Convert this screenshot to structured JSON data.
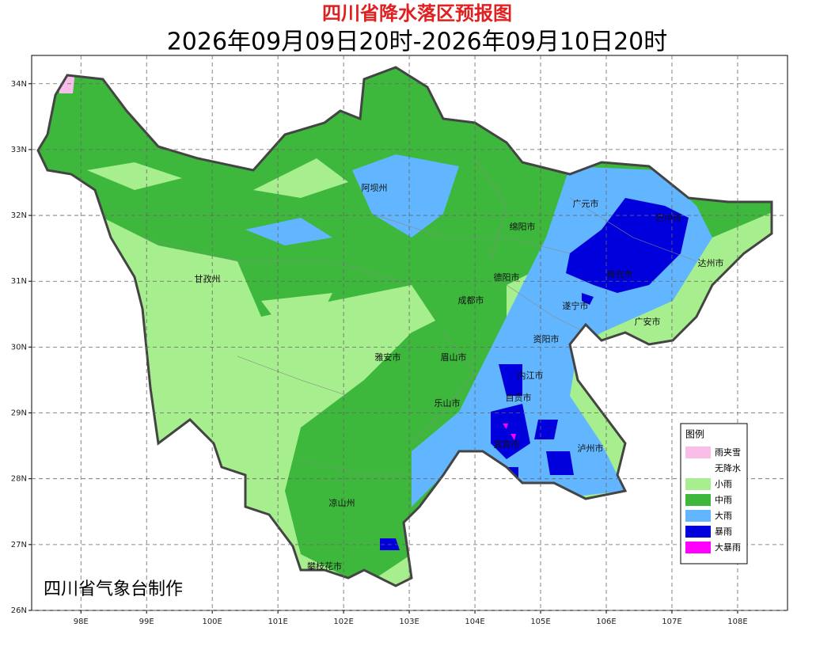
{
  "header": {
    "title": "四川省降水落区预报图",
    "subtitle": "2026年09月09日20时-2026年09月10日20时"
  },
  "map": {
    "xlim": [
      97.25,
      108.76
    ],
    "ylim": [
      26,
      34.43
    ],
    "xticks": [
      {
        "value": 98,
        "label": "98E"
      },
      {
        "value": 99,
        "label": "99E"
      },
      {
        "value": 100,
        "label": "100E"
      },
      {
        "value": 101,
        "label": "101E"
      },
      {
        "value": 102,
        "label": "102E"
      },
      {
        "value": 103,
        "label": "103E"
      },
      {
        "value": 104,
        "label": "104E"
      },
      {
        "value": 105,
        "label": "105E"
      },
      {
        "value": 106,
        "label": "106E"
      },
      {
        "value": 107,
        "label": "107E"
      },
      {
        "value": 108,
        "label": "108E"
      }
    ],
    "yticks": [
      {
        "value": 26,
        "label": "26N"
      },
      {
        "value": 27,
        "label": "27N"
      },
      {
        "value": 28,
        "label": "28N"
      },
      {
        "value": 29,
        "label": "29N"
      },
      {
        "value": 30,
        "label": "30N"
      },
      {
        "value": 31,
        "label": "31N"
      },
      {
        "value": 32,
        "label": "32N"
      },
      {
        "value": 33,
        "label": "33N"
      },
      {
        "value": 34,
        "label": "34N"
      }
    ],
    "grid": true
  },
  "cities": [
    "阿坝州",
    "广元市",
    "巴中市",
    "绵阳市",
    "达州市",
    "德阳市",
    "南充市",
    "甘孜州",
    "成都市",
    "遂宁市",
    "广安市",
    "资阳市",
    "雅安市",
    "眉山市",
    "内江市",
    "乐山市",
    "自贡市",
    "宜宾市",
    "泸州市",
    "凉山州",
    "攀枝花市"
  ],
  "legend": {
    "title": "图例",
    "items": [
      {
        "label": "雨夹雪",
        "color": "#f9bde9"
      },
      {
        "label": "无降水",
        "color": "#ffffff"
      },
      {
        "label": "小雨",
        "color": "#a6ee8e"
      },
      {
        "label": "中雨",
        "color": "#3db83d"
      },
      {
        "label": "大雨",
        "color": "#62b6ff"
      },
      {
        "label": "暴雨",
        "color": "#0000dc"
      },
      {
        "label": "大暴雨",
        "color": "#ff00ff"
      }
    ]
  },
  "credit": "四川省气象台制作"
}
